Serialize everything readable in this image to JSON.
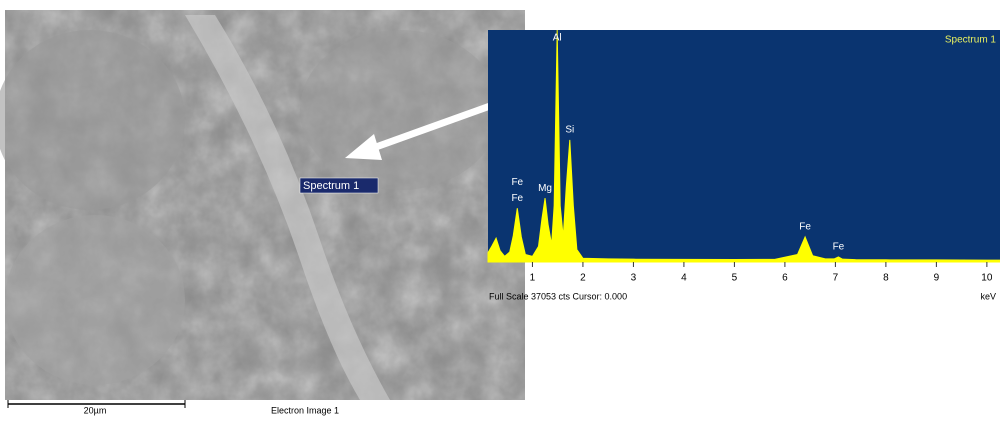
{
  "sem": {
    "spectrum_marker": "Spectrum 1",
    "scale_bar": "20µm",
    "caption": "Electron Image 1"
  },
  "chart_data": {
    "type": "area",
    "title": "Spectrum 1",
    "x_label": "keV",
    "footer": "Full Scale 37053 cts Cursor: 0.000",
    "xlim": [
      0.12,
      10.26
    ],
    "ylim": [
      0,
      37053
    ],
    "xticks": [
      1,
      2,
      3,
      4,
      5,
      6,
      7,
      8,
      9,
      10
    ],
    "color": "#ffff00",
    "x": [
      0.12,
      0.2,
      0.28,
      0.36,
      0.45,
      0.55,
      0.62,
      0.7,
      0.78,
      0.86,
      1.0,
      1.12,
      1.19,
      1.25,
      1.31,
      1.38,
      1.43,
      1.49,
      1.55,
      1.61,
      1.67,
      1.74,
      1.81,
      1.88,
      2.0,
      2.5,
      3,
      4,
      5,
      5.8,
      6.25,
      6.4,
      6.55,
      6.8,
      6.98,
      7.06,
      7.14,
      7.4,
      8,
      9,
      10,
      10.26
    ],
    "values": [
      1500,
      2600,
      3800,
      1800,
      900,
      1600,
      4200,
      8600,
      4000,
      1200,
      900,
      2500,
      7000,
      10200,
      6000,
      2800,
      9000,
      37053,
      9000,
      4000,
      12000,
      19500,
      9000,
      2000,
      600,
      500,
      450,
      420,
      400,
      420,
      1200,
      4000,
      1000,
      500,
      500,
      800,
      450,
      380,
      350,
      330,
      300,
      300
    ],
    "peak_labels": [
      {
        "text": "Fe",
        "x": 0.7
      },
      {
        "text": "Fe",
        "x": 0.7
      },
      {
        "text": "Mg",
        "x": 1.25
      },
      {
        "text": "Al",
        "x": 1.49
      },
      {
        "text": "Si",
        "x": 1.74
      },
      {
        "text": "Fe",
        "x": 6.4
      },
      {
        "text": "Fe",
        "x": 7.06
      }
    ]
  }
}
